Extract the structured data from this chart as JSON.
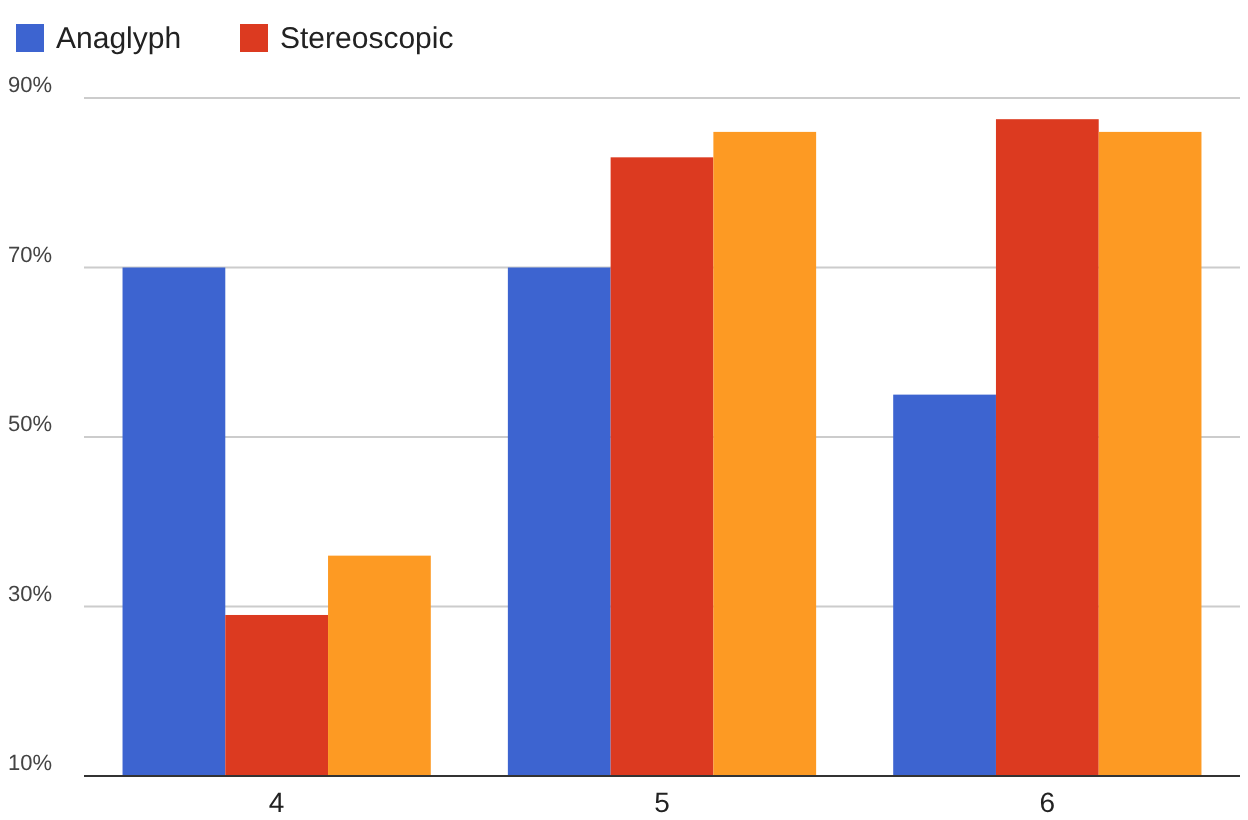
{
  "chart_data": {
    "type": "bar",
    "categories": [
      "4",
      "5",
      "6"
    ],
    "series": [
      {
        "name": "Anaglyph",
        "color": "#3d64d0",
        "values": [
          70,
          70,
          55
        ]
      },
      {
        "name": "Stereoscopic",
        "color": "#dc3a20",
        "values": [
          29,
          83,
          87.5
        ]
      },
      {
        "color": "#fd9a23",
        "values": [
          36,
          86,
          86
        ]
      }
    ],
    "ylim": [
      10,
      90
    ],
    "yticks": [
      {
        "value": 10,
        "label": "10%"
      },
      {
        "value": 30,
        "label": "30%"
      },
      {
        "value": 50,
        "label": "50%"
      },
      {
        "value": 70,
        "label": "70%"
      },
      {
        "value": 90,
        "label": "90%"
      }
    ],
    "grid": "y",
    "legend": "top left"
  }
}
